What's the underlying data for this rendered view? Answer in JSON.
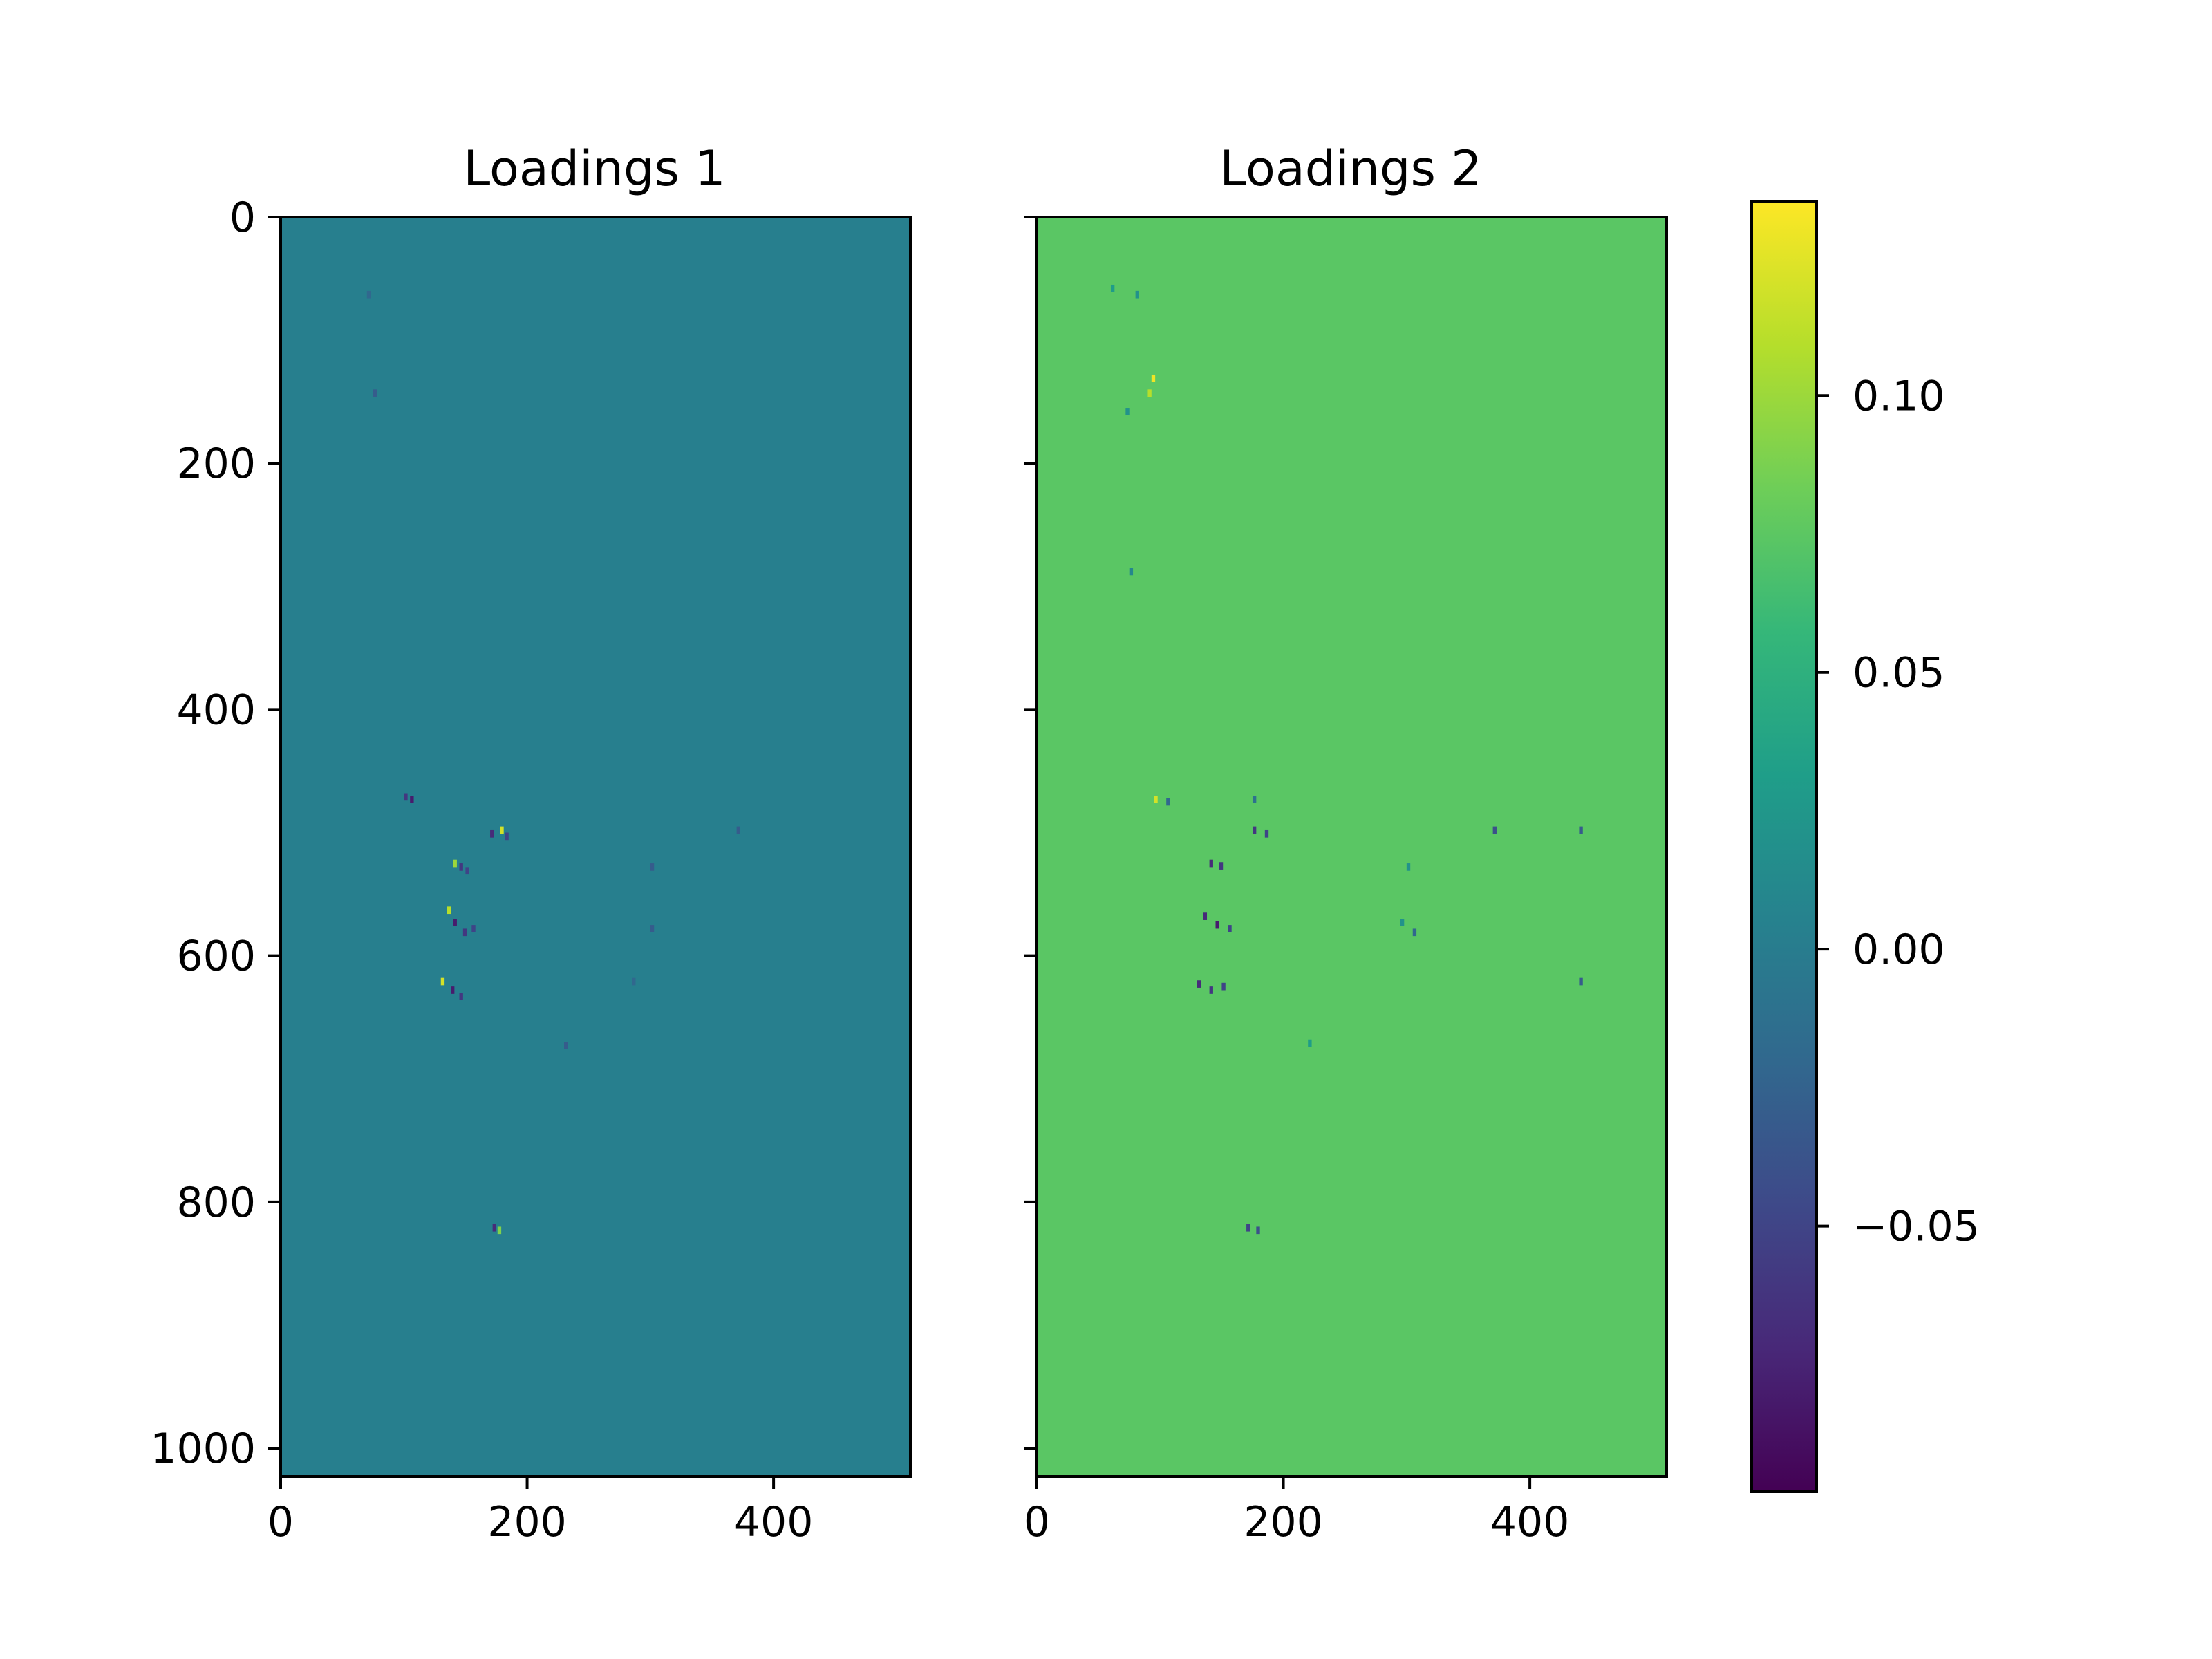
{
  "colormap": {
    "name": "viridis",
    "stops": [
      "#440154",
      "#482878",
      "#3e4989",
      "#31688e",
      "#26828e",
      "#1f9e89",
      "#35b779",
      "#6ece58",
      "#b5de2b",
      "#fde725"
    ]
  },
  "colorbar": {
    "range": [
      -0.098,
      0.135
    ],
    "ticks": [
      0.1,
      0.05,
      0.0,
      -0.05
    ],
    "tick_labels": [
      "0.10",
      "0.05",
      "0.00",
      "−0.05"
    ]
  },
  "chart_data": [
    {
      "type": "heatmap",
      "title": "Loadings 1",
      "xlim": [
        0,
        511
      ],
      "ylim": [
        1023,
        0
      ],
      "x_ticks": [
        0,
        200,
        400
      ],
      "x_tick_labels": [
        "0",
        "200",
        "400"
      ],
      "y_ticks": [
        0,
        200,
        400,
        600,
        800,
        1000
      ],
      "y_tick_labels": [
        "0",
        "200",
        "400",
        "600",
        "800",
        "1000"
      ],
      "background_value": 0.003,
      "features": [
        {
          "x": 105,
          "y": 470,
          "v": -0.08
        },
        {
          "x": 100,
          "y": 468,
          "v": -0.06
        },
        {
          "x": 178,
          "y": 495,
          "v": 0.12
        },
        {
          "x": 170,
          "y": 498,
          "v": -0.07
        },
        {
          "x": 182,
          "y": 500,
          "v": -0.05
        },
        {
          "x": 140,
          "y": 522,
          "v": 0.1
        },
        {
          "x": 145,
          "y": 525,
          "v": -0.06
        },
        {
          "x": 150,
          "y": 528,
          "v": -0.05
        },
        {
          "x": 135,
          "y": 560,
          "v": 0.11
        },
        {
          "x": 140,
          "y": 570,
          "v": -0.08
        },
        {
          "x": 148,
          "y": 578,
          "v": -0.06
        },
        {
          "x": 155,
          "y": 575,
          "v": -0.05
        },
        {
          "x": 130,
          "y": 618,
          "v": 0.12
        },
        {
          "x": 138,
          "y": 625,
          "v": -0.08
        },
        {
          "x": 145,
          "y": 630,
          "v": -0.06
        },
        {
          "x": 172,
          "y": 818,
          "v": -0.07
        },
        {
          "x": 176,
          "y": 820,
          "v": 0.09
        },
        {
          "x": 300,
          "y": 525,
          "v": -0.03
        },
        {
          "x": 300,
          "y": 575,
          "v": -0.03
        },
        {
          "x": 370,
          "y": 495,
          "v": -0.03
        },
        {
          "x": 285,
          "y": 618,
          "v": -0.02
        },
        {
          "x": 230,
          "y": 670,
          "v": -0.03
        },
        {
          "x": 75,
          "y": 140,
          "v": -0.03
        },
        {
          "x": 70,
          "y": 60,
          "v": -0.02
        }
      ]
    },
    {
      "type": "heatmap",
      "title": "Loadings 2",
      "xlim": [
        0,
        511
      ],
      "ylim": [
        1023,
        0
      ],
      "x_ticks": [
        0,
        200,
        400
      ],
      "x_tick_labels": [
        "0",
        "200",
        "400"
      ],
      "y_ticks": [
        0,
        200,
        400,
        600,
        800,
        1000
      ],
      "y_tick_labels": [
        "",
        "",
        "",
        "",
        "",
        ""
      ],
      "background_value": 0.074,
      "features": [
        {
          "x": 93,
          "y": 128,
          "v": 0.13
        },
        {
          "x": 90,
          "y": 140,
          "v": 0.11
        },
        {
          "x": 72,
          "y": 155,
          "v": 0.02
        },
        {
          "x": 75,
          "y": 285,
          "v": 0.01
        },
        {
          "x": 95,
          "y": 470,
          "v": 0.12
        },
        {
          "x": 105,
          "y": 472,
          "v": -0.02
        },
        {
          "x": 175,
          "y": 470,
          "v": -0.01
        },
        {
          "x": 175,
          "y": 495,
          "v": -0.06
        },
        {
          "x": 185,
          "y": 498,
          "v": -0.05
        },
        {
          "x": 140,
          "y": 522,
          "v": -0.07
        },
        {
          "x": 148,
          "y": 524,
          "v": -0.06
        },
        {
          "x": 135,
          "y": 565,
          "v": -0.07
        },
        {
          "x": 145,
          "y": 572,
          "v": -0.08
        },
        {
          "x": 155,
          "y": 575,
          "v": -0.05
        },
        {
          "x": 130,
          "y": 620,
          "v": -0.07
        },
        {
          "x": 140,
          "y": 625,
          "v": -0.06
        },
        {
          "x": 150,
          "y": 622,
          "v": -0.05
        },
        {
          "x": 370,
          "y": 495,
          "v": -0.04
        },
        {
          "x": 440,
          "y": 495,
          "v": -0.03
        },
        {
          "x": 300,
          "y": 525,
          "v": 0.02
        },
        {
          "x": 295,
          "y": 570,
          "v": 0.02
        },
        {
          "x": 305,
          "y": 578,
          "v": -0.02
        },
        {
          "x": 440,
          "y": 618,
          "v": -0.03
        },
        {
          "x": 170,
          "y": 818,
          "v": -0.05
        },
        {
          "x": 178,
          "y": 820,
          "v": -0.04
        },
        {
          "x": 220,
          "y": 668,
          "v": 0.03
        },
        {
          "x": 60,
          "y": 55,
          "v": 0.03
        },
        {
          "x": 80,
          "y": 60,
          "v": 0.02
        }
      ]
    }
  ]
}
